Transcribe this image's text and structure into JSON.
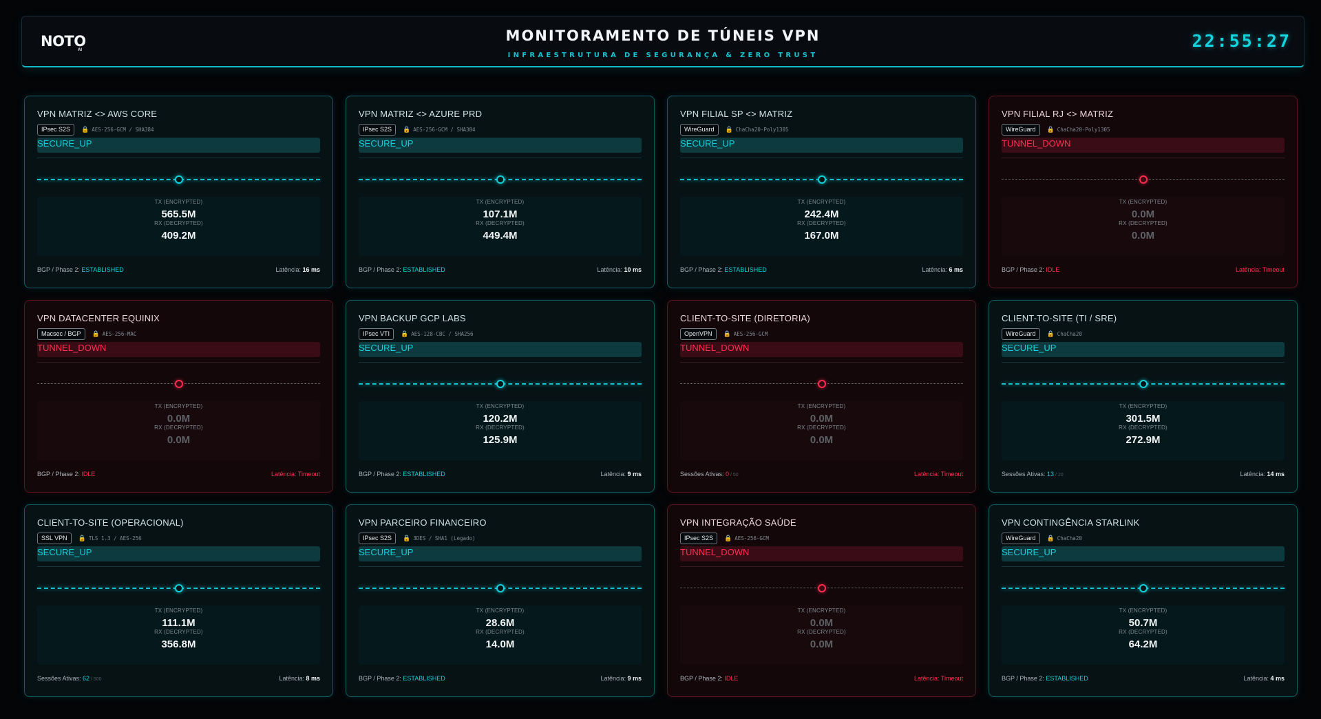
{
  "header": {
    "logo": "NOTO",
    "logo_sub": "AI",
    "title": "MONITORAMENTO DE TÚNEIS VPN",
    "subtitle": "INFRAESTRUTURA DE SEGURANÇA & ZERO TRUST",
    "clock": "22:55:27"
  },
  "labels": {
    "tx": "TX (ENCRYPTED)",
    "rx": "RX (DECRYPTED)"
  },
  "colors": {
    "accent": "#14d4df",
    "up": "#15d0da",
    "down": "#ff2f52",
    "background": "#030507"
  },
  "tunnels": [
    {
      "name": "VPN MATRIZ <> AWS CORE",
      "protocol": "IPsec S2S",
      "cipher": "AES-256-GCM / SHA384",
      "status": "SECURE_UP",
      "state": "up",
      "tx": "565.5M",
      "rx": "409.2M",
      "footer_label": "BGP / Phase 2: ",
      "footer_value": "ESTABLISHED",
      "footer_extra": "",
      "latency_label": "Latência: ",
      "latency": "16 ms"
    },
    {
      "name": "VPN MATRIZ <> AZURE PRD",
      "protocol": "IPsec S2S",
      "cipher": "AES-256-GCM / SHA384",
      "status": "SECURE_UP",
      "state": "up",
      "tx": "107.1M",
      "rx": "449.4M",
      "footer_label": "BGP / Phase 2: ",
      "footer_value": "ESTABLISHED",
      "footer_extra": "",
      "latency_label": "Latência: ",
      "latency": "10 ms"
    },
    {
      "name": "VPN FILIAL SP <> MATRIZ",
      "protocol": "WireGuard",
      "cipher": "ChaCha20-Poly1305",
      "status": "SECURE_UP",
      "state": "up",
      "tx": "242.4M",
      "rx": "167.0M",
      "footer_label": "BGP / Phase 2: ",
      "footer_value": "ESTABLISHED",
      "footer_extra": "",
      "latency_label": "Latência: ",
      "latency": "6 ms"
    },
    {
      "name": "VPN FILIAL RJ <> MATRIZ",
      "protocol": "WireGuard",
      "cipher": "ChaCha20-Poly1305",
      "status": "TUNNEL_DOWN",
      "state": "down",
      "tx": "0.0M",
      "rx": "0.0M",
      "footer_label": "BGP / Phase 2: ",
      "footer_value": "IDLE",
      "footer_extra": "",
      "latency_label": "Latência: ",
      "latency": "Timeout"
    },
    {
      "name": "VPN DATACENTER EQUINIX",
      "protocol": "Macsec / BGP",
      "cipher": "AES-256-MAC",
      "status": "TUNNEL_DOWN",
      "state": "down",
      "tx": "0.0M",
      "rx": "0.0M",
      "footer_label": "BGP / Phase 2: ",
      "footer_value": "IDLE",
      "footer_extra": "",
      "latency_label": "Latência: ",
      "latency": "Timeout"
    },
    {
      "name": "VPN BACKUP GCP LABS",
      "protocol": "IPsec VTI",
      "cipher": "AES-128-CBC / SHA256",
      "status": "SECURE_UP",
      "state": "up",
      "tx": "120.2M",
      "rx": "125.9M",
      "footer_label": "BGP / Phase 2: ",
      "footer_value": "ESTABLISHED",
      "footer_extra": "",
      "latency_label": "Latência: ",
      "latency": "9 ms"
    },
    {
      "name": "CLIENT-TO-SITE (DIRETORIA)",
      "protocol": "OpenVPN",
      "cipher": "AES-256-GCM",
      "status": "TUNNEL_DOWN",
      "state": "down",
      "tx": "0.0M",
      "rx": "0.0M",
      "footer_label": "Sessões Ativas: ",
      "footer_value": "0",
      "footer_extra": " / 50",
      "latency_label": "Latência: ",
      "latency": "Timeout"
    },
    {
      "name": "CLIENT-TO-SITE (TI / SRE)",
      "protocol": "WireGuard",
      "cipher": "ChaCha20",
      "status": "SECURE_UP",
      "state": "up",
      "tx": "301.5M",
      "rx": "272.9M",
      "footer_label": "Sessões Ativas: ",
      "footer_value": "13",
      "footer_extra": " / 20",
      "latency_label": "Latência: ",
      "latency": "14 ms"
    },
    {
      "name": "CLIENT-TO-SITE (OPERACIONAL)",
      "protocol": "SSL VPN",
      "cipher": "TLS 1.3 / AES-256",
      "status": "SECURE_UP",
      "state": "up",
      "tx": "111.1M",
      "rx": "356.8M",
      "footer_label": "Sessões Ativas: ",
      "footer_value": "62",
      "footer_extra": " / 500",
      "latency_label": "Latência: ",
      "latency": "8 ms"
    },
    {
      "name": "VPN PARCEIRO FINANCEIRO",
      "protocol": "IPsec S2S",
      "cipher": "3DES / SHA1 (Legado)",
      "status": "SECURE_UP",
      "state": "up",
      "tx": "28.6M",
      "rx": "14.0M",
      "footer_label": "BGP / Phase 2: ",
      "footer_value": "ESTABLISHED",
      "footer_extra": "",
      "latency_label": "Latência: ",
      "latency": "9 ms"
    },
    {
      "name": "VPN INTEGRAÇÃO SAÚDE",
      "protocol": "IPsec S2S",
      "cipher": "AES-256-GCM",
      "status": "TUNNEL_DOWN",
      "state": "down",
      "tx": "0.0M",
      "rx": "0.0M",
      "footer_label": "BGP / Phase 2: ",
      "footer_value": "IDLE",
      "footer_extra": "",
      "latency_label": "Latência: ",
      "latency": "Timeout"
    },
    {
      "name": "VPN CONTINGÊNCIA STARLINK",
      "protocol": "WireGuard",
      "cipher": "ChaCha20",
      "status": "SECURE_UP",
      "state": "up",
      "tx": "50.7M",
      "rx": "64.2M",
      "footer_label": "BGP / Phase 2: ",
      "footer_value": "ESTABLISHED",
      "footer_extra": "",
      "latency_label": "Latência: ",
      "latency": "4 ms"
    }
  ]
}
